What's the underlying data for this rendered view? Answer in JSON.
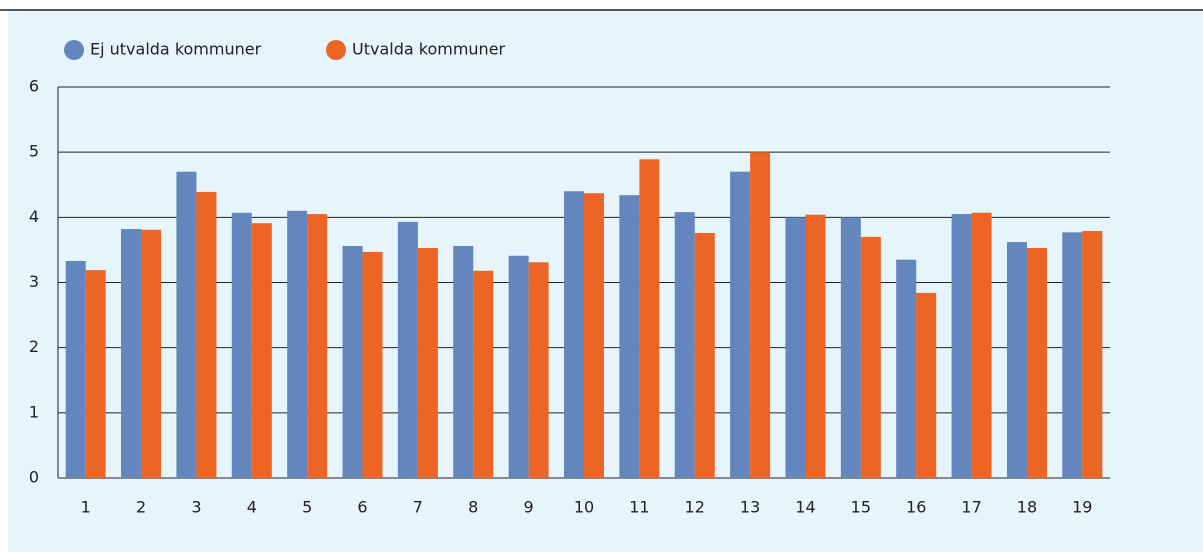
{
  "chart_data": {
    "type": "bar",
    "categories": [
      "1",
      "2",
      "3",
      "4",
      "5",
      "6",
      "7",
      "8",
      "9",
      "10",
      "11",
      "12",
      "13",
      "14",
      "15",
      "16",
      "17",
      "18",
      "19"
    ],
    "series": [
      {
        "name": "Ej utvalda kommuner",
        "color": "#6286bd",
        "values": [
          3.33,
          3.82,
          4.7,
          4.07,
          4.1,
          3.56,
          3.93,
          3.56,
          3.41,
          4.4,
          4.34,
          4.08,
          4.7,
          4.0,
          4.0,
          3.35,
          4.05,
          3.62,
          3.77
        ]
      },
      {
        "name": "Utvalda kommuner",
        "color": "#ec6525",
        "values": [
          3.19,
          3.81,
          4.39,
          3.91,
          4.05,
          3.47,
          3.53,
          3.18,
          3.31,
          4.37,
          4.89,
          3.76,
          5.0,
          4.04,
          3.7,
          2.84,
          4.07,
          3.53,
          3.79
        ]
      }
    ],
    "ylim": [
      0,
      6
    ],
    "yticks": [
      0,
      1,
      2,
      3,
      4,
      5,
      6
    ],
    "grid": true
  }
}
